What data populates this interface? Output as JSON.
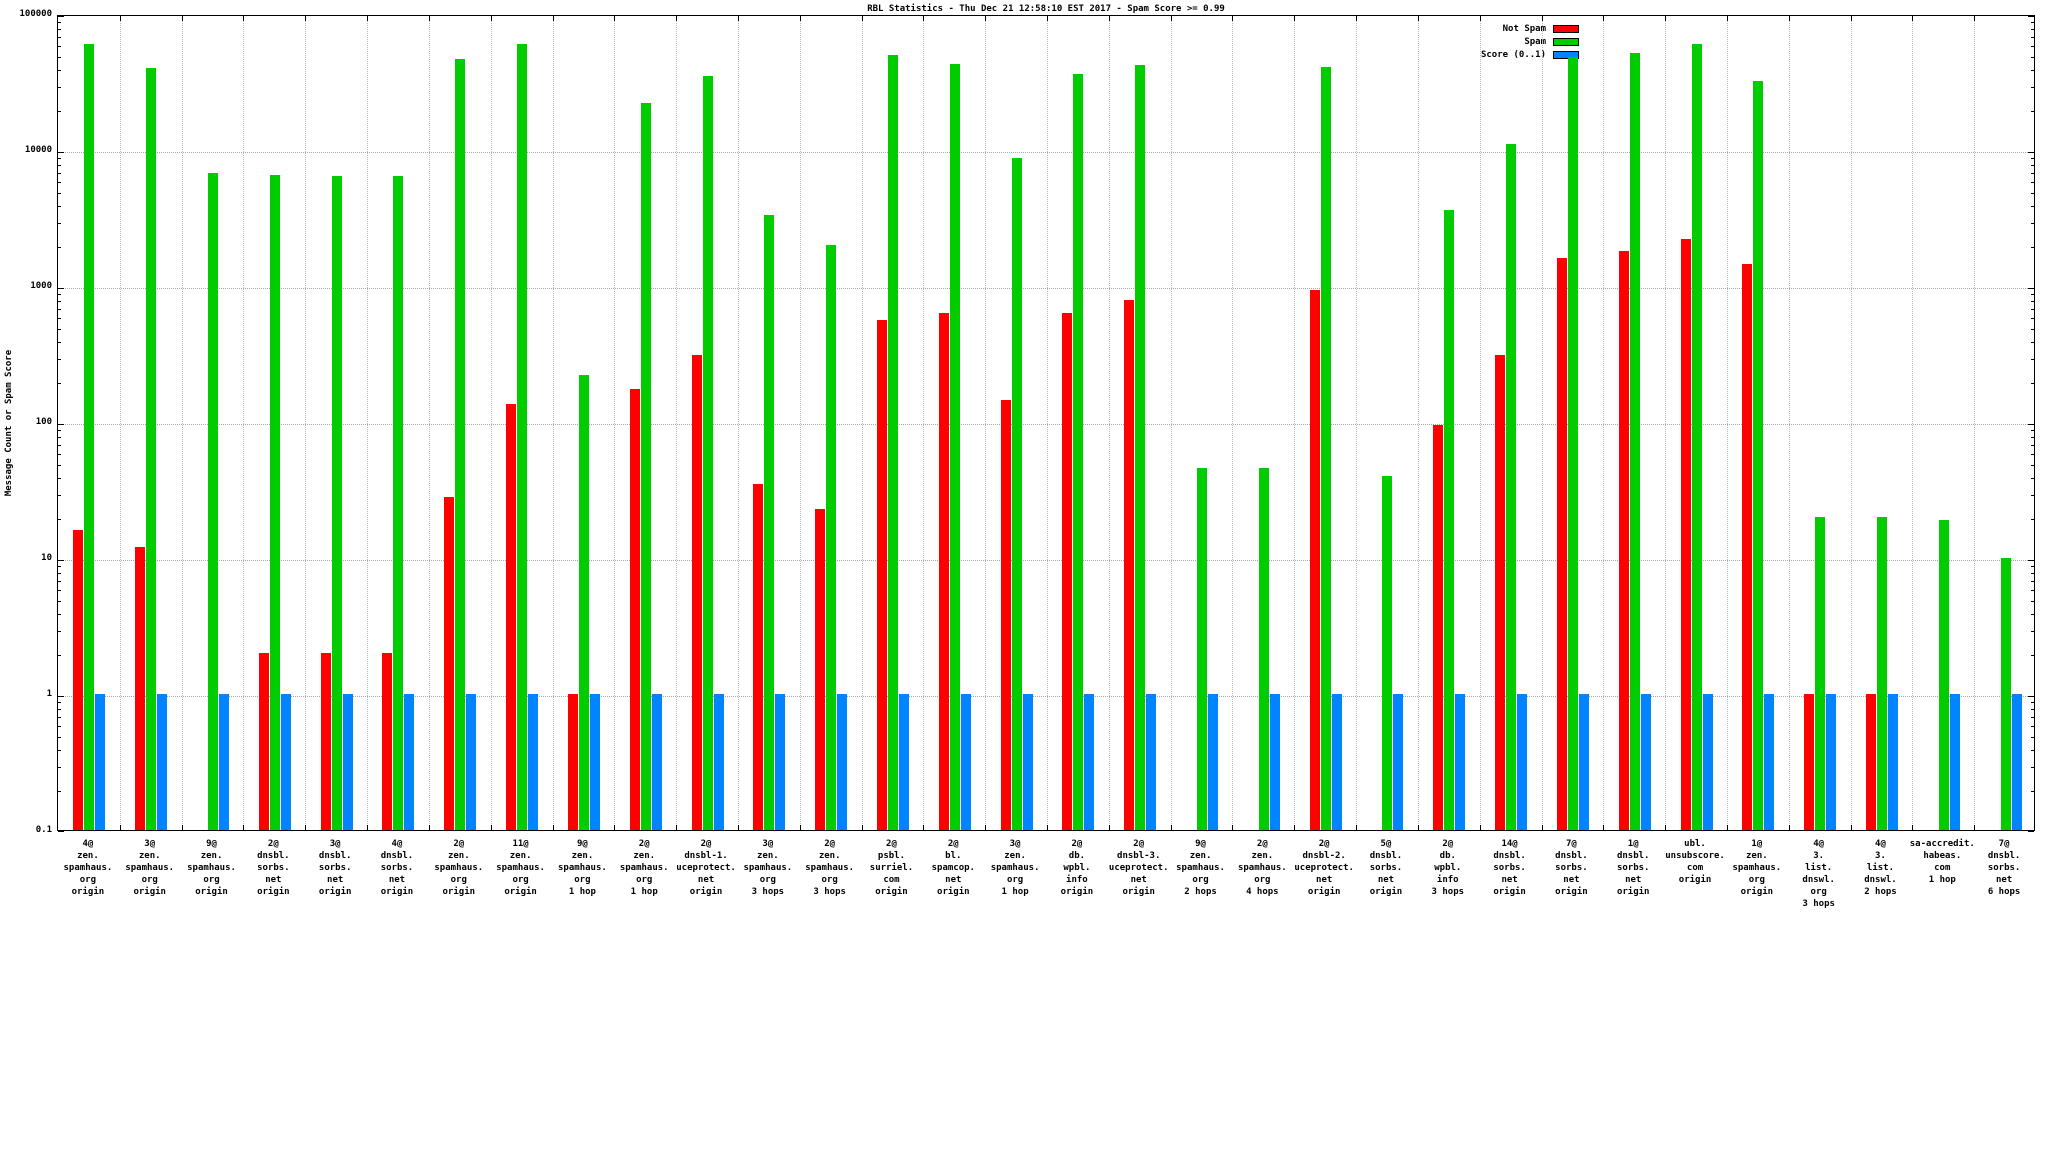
{
  "title": "RBL Statistics - Thu Dec 21 12:58:10 EST 2017 - Spam Score >= 0.99",
  "ylabel": "Message Count or Spam Score",
  "chart_data": {
    "type": "bar",
    "yscale": "log",
    "ylim": [
      0.1,
      100000
    ],
    "yticks": [
      0.1,
      1,
      10,
      100,
      1000,
      10000,
      100000
    ],
    "grid": true,
    "legend_position": "top-right-inside",
    "categories": [
      "4@\nzen.\nspamhaus.\norg\norigin",
      "3@\nzen.\nspamhaus.\norg\norigin",
      "9@\nzen.\nspamhaus.\norg\norigin",
      "2@\ndnsbl.\nsorbs.\nnet\norigin",
      "3@\ndnsbl.\nsorbs.\nnet\norigin",
      "4@\ndnsbl.\nsorbs.\nnet\norigin",
      "2@\nzen.\nspamhaus.\norg\norigin",
      "11@\nzen.\nspamhaus.\norg\norigin",
      "9@\nzen.\nspamhaus.\norg\n1 hop",
      "2@\nzen.\nspamhaus.\norg\n1 hop",
      "2@\ndnsbl-1.\nuceprotect.\nnet\norigin",
      "3@\nzen.\nspamhaus.\norg\n3 hops",
      "2@\nzen.\nspamhaus.\norg\n3 hops",
      "2@\npsbl.\nsurriel.\ncom\norigin",
      "2@\nbl.\nspamcop.\nnet\norigin",
      "3@\nzen.\nspamhaus.\norg\n1 hop",
      "2@\ndb.\nwpbl.\ninfo\norigin",
      "2@\ndnsbl-3.\nuceprotect.\nnet\norigin",
      "9@\nzen.\nspamhaus.\norg\n2 hops",
      "2@\nzen.\nspamhaus.\norg\n4 hops",
      "2@\ndnsbl-2.\nuceprotect.\nnet\norigin",
      "5@\ndnsbl.\nsorbs.\nnet\norigin",
      "2@\ndb.\nwpbl.\ninfo\n3 hops",
      "14@\ndnsbl.\nsorbs.\nnet\norigin",
      "7@\ndnsbl.\nsorbs.\nnet\norigin",
      "1@\ndnsbl.\nsorbs.\nnet\norigin",
      "ubl.\nunsubscore.\ncom\norigin",
      "1@\nzen.\nspamhaus.\norg\norigin",
      "4@\n3.\nlist.\ndnswl.\norg\n3 hops",
      "4@\n3.\nlist.\ndnswl.\n2 hops",
      "sa-accredit.\nhabeas.\ncom\n1 hop",
      "7@\ndnsbl.\nsorbs.\nnet\n6 hops"
    ],
    "series": [
      {
        "key": "not-spam",
        "name": "Not Spam",
        "color": "#ff0000",
        "values": [
          16,
          12,
          0,
          2,
          2,
          2,
          28,
          135,
          1,
          175,
          310,
          35,
          23,
          560,
          630,
          145,
          630,
          790,
          0,
          0,
          930,
          0,
          95,
          310,
          1600,
          1800,
          2200,
          1450,
          1,
          1,
          0,
          0
        ]
      },
      {
        "key": "spam",
        "name": "Spam",
        "color": "#00cc00",
        "values": [
          60000,
          40000,
          6800,
          6500,
          6400,
          6400,
          47000,
          60000,
          220,
          22000,
          35000,
          3300,
          2000,
          50000,
          43000,
          8800,
          36000,
          42000,
          46,
          46,
          41000,
          40,
          3600,
          11000,
          48000,
          52000,
          60000,
          32000,
          20,
          20,
          19,
          10
        ]
      },
      {
        "key": "score",
        "name": "Score (0..1)",
        "color": "#0084ff",
        "values": [
          1,
          1,
          1,
          1,
          1,
          1,
          1,
          1,
          1,
          1,
          1,
          1,
          1,
          1,
          1,
          1,
          1,
          1,
          1,
          1,
          1,
          1,
          1,
          1,
          1,
          1,
          1,
          1,
          1,
          1,
          1,
          1
        ]
      }
    ]
  }
}
